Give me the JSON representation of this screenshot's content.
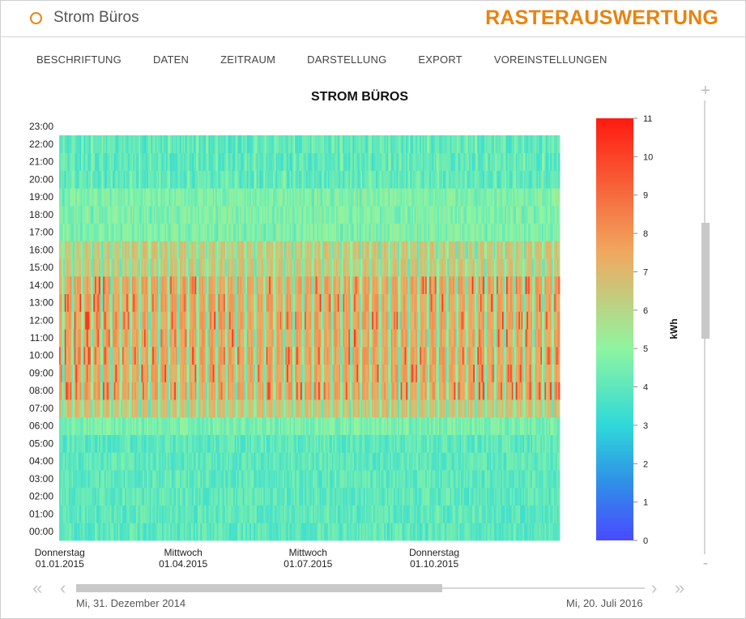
{
  "app": {
    "title": "Strom Büros",
    "brand": "RASTERAUSWERTUNG"
  },
  "menu": [
    "BESCHRIFTUNG",
    "DATEN",
    "ZEITRAUM",
    "DARSTELLUNG",
    "EXPORT",
    "VOREINSTELLUNGEN"
  ],
  "chart_data": {
    "type": "heatmap",
    "title": "STROM BÜROS",
    "y_tick_labels": [
      "00:00",
      "01:00",
      "02:00",
      "03:00",
      "04:00",
      "05:00",
      "06:00",
      "07:00",
      "08:00",
      "09:00",
      "10:00",
      "11:00",
      "12:00",
      "13:00",
      "14:00",
      "15:00",
      "16:00",
      "17:00",
      "18:00",
      "19:00",
      "20:00",
      "21:00",
      "22:00",
      "23:00"
    ],
    "x_ticks": [
      {
        "weekday": "Donnerstag",
        "date": "01.01.2015"
      },
      {
        "weekday": "Mittwoch",
        "date": "01.04.2015"
      },
      {
        "weekday": "Mittwoch",
        "date": "01.07.2015"
      },
      {
        "weekday": "Donnerstag",
        "date": "01.10.2015"
      }
    ],
    "x_range": [
      "2015-01-01",
      "2015-12-31"
    ],
    "y_range_hours": [
      0,
      23
    ],
    "colorbar": {
      "unit": "kWh",
      "min": 0,
      "max": 11,
      "ticks": [
        0,
        1,
        2,
        3,
        4,
        5,
        6,
        7,
        8,
        9,
        10,
        11
      ]
    },
    "typical_values_kwh": {
      "night_00_06": 4.0,
      "early_06_07": 4.6,
      "ramp_07_08": 6.8,
      "core_08_15": 7.6,
      "core_peak_max": 10.5,
      "afternoon_15_17": 6.6,
      "evening_17_20": 4.8,
      "late_20_23": 3.9
    },
    "gradient_stops": [
      {
        "value": 0,
        "color": "#4a4aff"
      },
      {
        "value": 1.5,
        "color": "#2f8fe8"
      },
      {
        "value": 3,
        "color": "#2fd9d9"
      },
      {
        "value": 5,
        "color": "#8ff5a0"
      },
      {
        "value": 7.5,
        "color": "#f0a860"
      },
      {
        "value": 11,
        "color": "#ff1a10"
      }
    ]
  },
  "navigator": {
    "start_label": "Mi, 31. Dezember 2014",
    "end_label": "Mi, 20. Juli 2016",
    "first_icon": "double-chevron-left-icon",
    "prev_icon": "chevron-left-icon",
    "next_icon": "chevron-right-icon",
    "last_icon": "double-chevron-right-icon"
  },
  "zoom": {
    "plus": "+",
    "minus": "-"
  }
}
